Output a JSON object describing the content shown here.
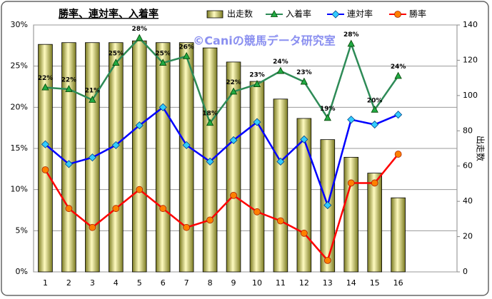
{
  "chart_data": {
    "type": "bar",
    "title": "勝率、連対率、入着率",
    "watermark": "©Caniの競馬データ研究室",
    "y2label": "出走数",
    "categories": [
      "1",
      "2",
      "3",
      "4",
      "5",
      "6",
      "7",
      "8",
      "9",
      "10",
      "11",
      "12",
      "13",
      "14",
      "15",
      "16",
      null,
      null
    ],
    "ylim": [
      0,
      30
    ],
    "yticks": [
      {
        "value": 0,
        "label": "0%"
      },
      {
        "value": 5,
        "label": "5%"
      },
      {
        "value": 10,
        "label": "10%"
      },
      {
        "value": 15,
        "label": "15%"
      },
      {
        "value": 20,
        "label": "20%"
      },
      {
        "value": 25,
        "label": "25%"
      },
      {
        "value": 30,
        "label": "30%"
      }
    ],
    "y2lim": [
      0,
      140
    ],
    "y2ticks": [
      0,
      20,
      40,
      60,
      80,
      100,
      120,
      140
    ],
    "grid": true,
    "series": [
      {
        "name": "出走数",
        "type": "bar",
        "axis": "y2",
        "color": "#e8e08a",
        "values": [
          129,
          130,
          130,
          130,
          131,
          130,
          130,
          127,
          119,
          108,
          98,
          87,
          75,
          65,
          56,
          42,
          null,
          null
        ]
      },
      {
        "name": "入着率",
        "type": "line",
        "color": "#2e8b57",
        "marker": "triangle",
        "marker_color": "#22aa44",
        "values": [
          22.4,
          22.2,
          20.9,
          25.4,
          28.4,
          25.4,
          26.2,
          18.1,
          21.9,
          22.8,
          24.4,
          23.1,
          18.7,
          27.7,
          19.7,
          23.8,
          null,
          null
        ],
        "value_labels": [
          "22%",
          "22%",
          "21%",
          "25%",
          "28%",
          "25%",
          "26%",
          "18%",
          "22%",
          "23%",
          "24%",
          "23%",
          "19%",
          "28%",
          "20%",
          "24%",
          null,
          null
        ]
      },
      {
        "name": "連対率",
        "type": "line",
        "color": "#0000ff",
        "marker": "diamond",
        "marker_color": "#33ccff",
        "values": [
          15.5,
          13.1,
          13.9,
          15.4,
          17.8,
          20.0,
          15.4,
          13.4,
          16.0,
          18.2,
          13.4,
          16.1,
          8.1,
          18.5,
          17.9,
          19.1,
          null,
          null
        ]
      },
      {
        "name": "勝率",
        "type": "line",
        "color": "#ff0000",
        "marker": "circle",
        "marker_color": "#ff8000",
        "values": [
          12.4,
          7.7,
          5.4,
          7.7,
          10.0,
          7.7,
          5.4,
          6.3,
          9.3,
          7.3,
          6.2,
          4.7,
          1.4,
          10.8,
          10.8,
          14.3,
          null,
          null
        ]
      }
    ]
  }
}
